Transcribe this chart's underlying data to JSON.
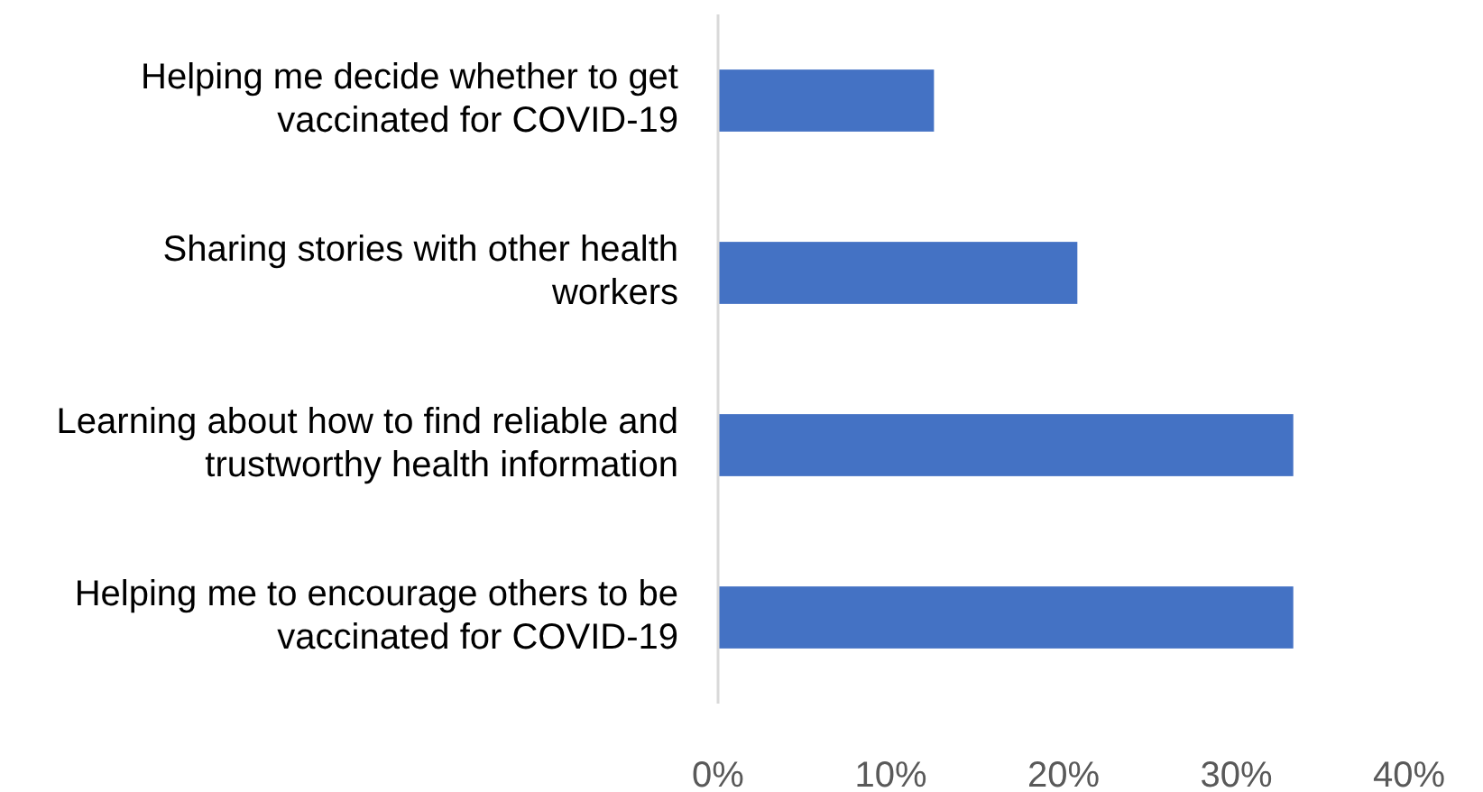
{
  "chart_data": {
    "type": "bar",
    "orientation": "horizontal",
    "categories": [
      "Helping me decide whether to get vaccinated for COVID-19",
      "Sharing stories with other health workers",
      "Learning about how to find reliable and trustworthy health information",
      "Helping me to encourage others to be vaccinated for COVID-19"
    ],
    "values": [
      12.5,
      20.8,
      33.3,
      33.3
    ],
    "color": "#4472c4",
    "xlim": [
      0,
      40
    ],
    "xticks": [
      {
        "value": 0,
        "label": "0%"
      },
      {
        "value": 10,
        "label": "10%"
      },
      {
        "value": 20,
        "label": "20%"
      },
      {
        "value": 30,
        "label": "30%"
      },
      {
        "value": 40,
        "label": "40%"
      }
    ],
    "grid": false
  }
}
